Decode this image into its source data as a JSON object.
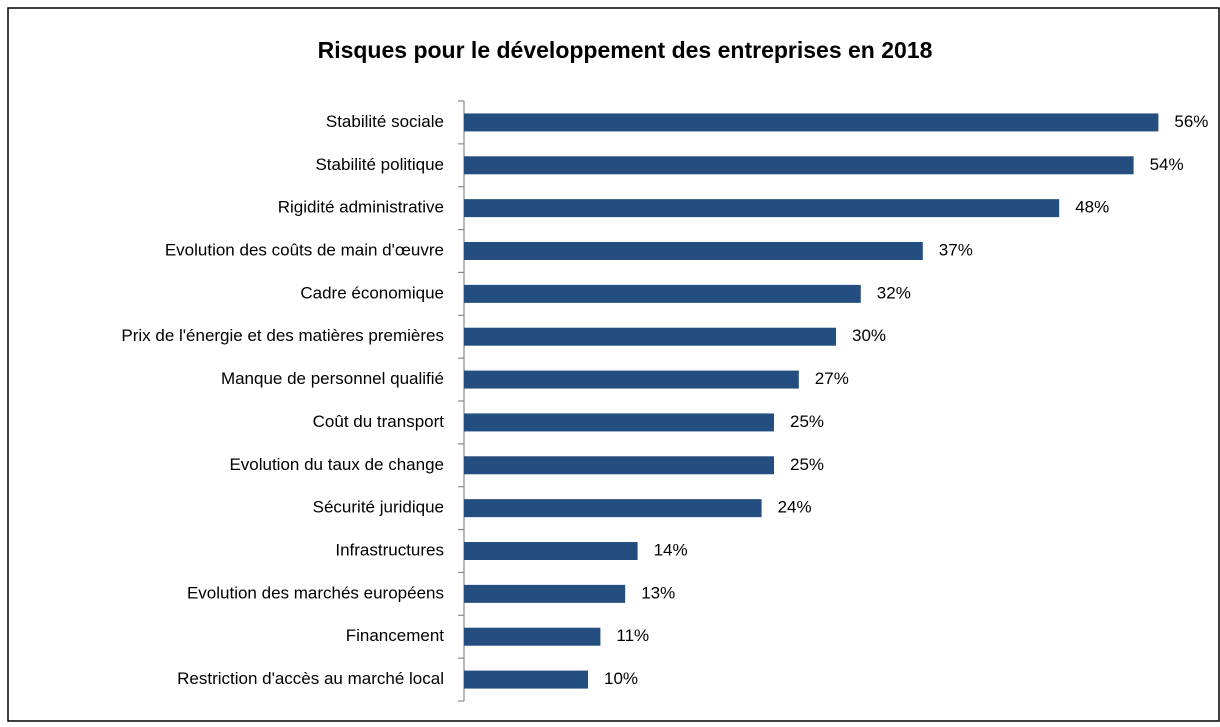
{
  "chart_data": {
    "type": "bar",
    "orientation": "horizontal",
    "title": "Risques pour le développement des entreprises en 2018",
    "categories": [
      "Stabilité sociale",
      "Stabilité politique",
      "Rigidité administrative",
      "Evolution des coûts de main d'œuvre",
      "Cadre économique",
      "Prix de l'énergie et des matières premières",
      "Manque de personnel qualifié",
      "Coût du transport",
      "Evolution du taux de change",
      "Sécurité juridique",
      "Infrastructures",
      "Evolution des marchés européens",
      "Financement",
      "Restriction d'accès au marché local"
    ],
    "values": [
      56,
      54,
      48,
      37,
      32,
      30,
      27,
      25,
      25,
      24,
      14,
      13,
      11,
      10
    ],
    "value_labels": [
      "56%",
      "54%",
      "48%",
      "37%",
      "32%",
      "30%",
      "27%",
      "25%",
      "25%",
      "24%",
      "14%",
      "13%",
      "11%",
      "10%"
    ],
    "color": "#254e80",
    "xlim": [
      0,
      60
    ]
  }
}
